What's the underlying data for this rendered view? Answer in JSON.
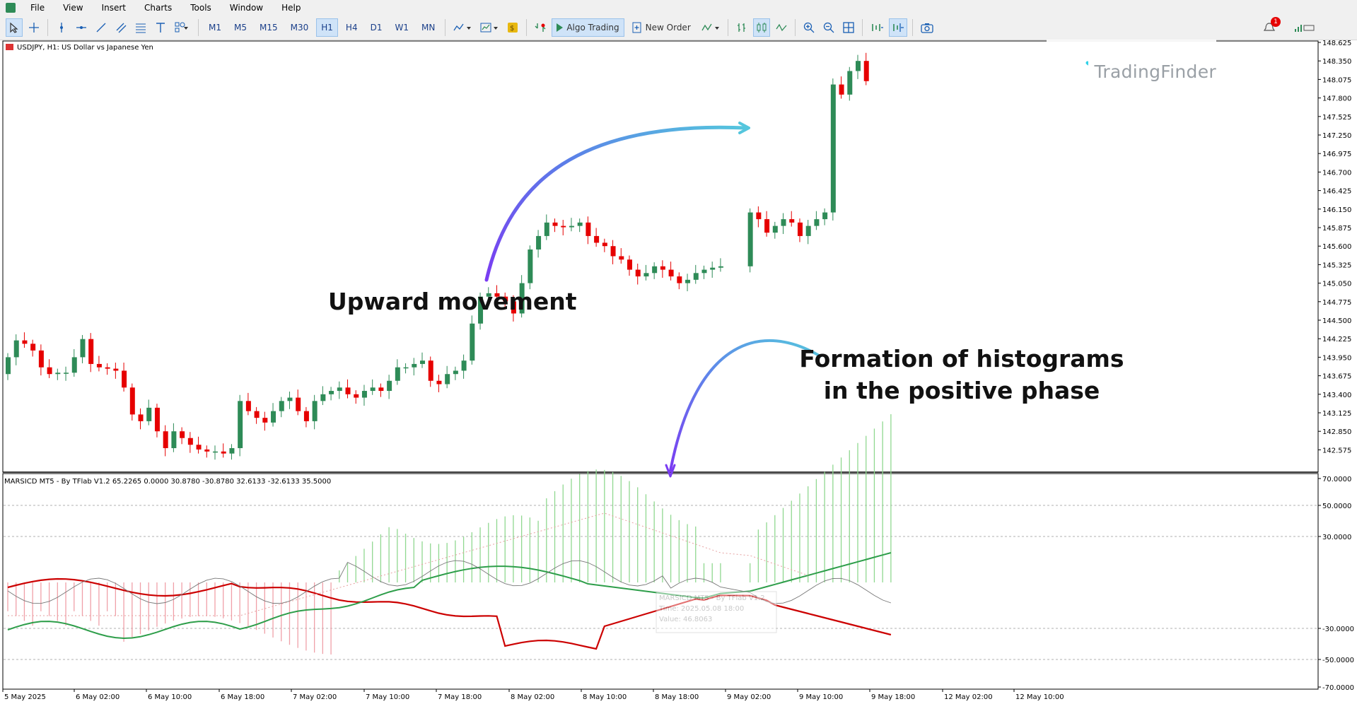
{
  "menu": {
    "items": [
      "File",
      "View",
      "Insert",
      "Charts",
      "Tools",
      "Window",
      "Help"
    ]
  },
  "toolbar": {
    "timeframes": [
      "M1",
      "M5",
      "M15",
      "M30",
      "H1",
      "H4",
      "D1",
      "W1",
      "MN"
    ],
    "active_timeframe": "H1",
    "algo_trading_label": "Algo Trading",
    "new_order_label": "New Order",
    "notification_count": "1"
  },
  "watermark": {
    "brand": "TradingFinder"
  },
  "chart": {
    "title": "USDJPY, H1:  US Dollar vs Japanese Yen",
    "price_labels": [
      "148.625",
      "148.350",
      "148.075",
      "147.800",
      "147.525",
      "147.250",
      "146.975",
      "146.700",
      "146.425",
      "146.150",
      "145.875",
      "145.600",
      "145.325",
      "145.050",
      "144.775",
      "144.500",
      "144.225",
      "143.950",
      "143.675",
      "143.400",
      "143.125",
      "142.850",
      "142.575"
    ],
    "time_labels": [
      "5 May 2025",
      "6 May 02:00",
      "6 May 10:00",
      "6 May 18:00",
      "7 May 02:00",
      "7 May 10:00",
      "7 May 18:00",
      "8 May 02:00",
      "8 May 10:00",
      "8 May 18:00",
      "9 May 02:00",
      "9 May 10:00",
      "9 May 18:00",
      "12 May 02:00",
      "12 May 10:00"
    ],
    "up_color": "#2e8b57",
    "down_color": "#e60000"
  },
  "indicator": {
    "title": "MARSICD MT5 - By TFlab V1.2 65.2265 0.0000 30.8780 -30.8780 32.6133 -32.6133 35.5000",
    "scale_labels": [
      "70.0000",
      "50.0000",
      "30.0000",
      "-30.0000",
      "-50.0000",
      "-70.0000"
    ],
    "tooltip": {
      "name": "MARSICD MT5 - By TFlab V1.2",
      "time": "Time: 2025.05.08 18:00",
      "value": "Value: 46.8063"
    }
  },
  "annotations": {
    "upward_movement": "Upward movement",
    "histograms_line1": "Formation of histograms",
    "histograms_line2": "in the positive phase"
  }
}
